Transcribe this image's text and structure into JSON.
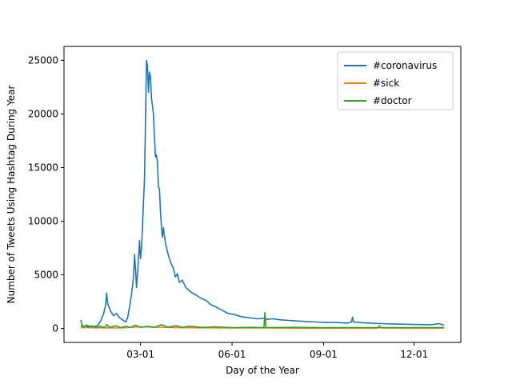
{
  "chart_data": {
    "type": "line",
    "xlabel": "Day of the Year",
    "ylabel": "Number of Tweets Using Hashtag During Year",
    "xlim": [
      "2020-01-01",
      "2020-12-31"
    ],
    "ylim": [
      -1300,
      26300
    ],
    "x_ticks": [
      {
        "date": "2020-03-01",
        "label": "03-01"
      },
      {
        "date": "2020-06-01",
        "label": "06-01"
      },
      {
        "date": "2020-09-01",
        "label": "09-01"
      },
      {
        "date": "2020-12-01",
        "label": "12-01"
      }
    ],
    "y_ticks": [
      0,
      5000,
      10000,
      15000,
      20000,
      25000
    ],
    "grid": false,
    "legend": "top-right",
    "series": [
      {
        "name": "#coronavirus",
        "color": "#1f77b4",
        "points": [
          [
            "2020-01-01",
            250
          ],
          [
            "2020-01-04",
            150
          ],
          [
            "2020-01-07",
            300
          ],
          [
            "2020-01-10",
            200
          ],
          [
            "2020-01-14",
            150
          ],
          [
            "2020-01-18",
            300
          ],
          [
            "2020-01-21",
            700
          ],
          [
            "2020-01-24",
            1400
          ],
          [
            "2020-01-26",
            2200
          ],
          [
            "2020-01-27",
            3300
          ],
          [
            "2020-01-28",
            2300
          ],
          [
            "2020-01-31",
            1600
          ],
          [
            "2020-02-03",
            1200
          ],
          [
            "2020-02-06",
            1400
          ],
          [
            "2020-02-09",
            1000
          ],
          [
            "2020-02-12",
            800
          ],
          [
            "2020-02-15",
            600
          ],
          [
            "2020-02-17",
            1000
          ],
          [
            "2020-02-19",
            2000
          ],
          [
            "2020-02-21",
            3200
          ],
          [
            "2020-02-23",
            4800
          ],
          [
            "2020-02-24",
            6900
          ],
          [
            "2020-02-25",
            5500
          ],
          [
            "2020-02-26",
            3800
          ],
          [
            "2020-02-28",
            6500
          ],
          [
            "2020-02-29",
            8200
          ],
          [
            "2020-03-01",
            6500
          ],
          [
            "2020-03-02",
            7500
          ],
          [
            "2020-03-03",
            9500
          ],
          [
            "2020-03-05",
            14000
          ],
          [
            "2020-03-06",
            19000
          ],
          [
            "2020-03-07",
            25000
          ],
          [
            "2020-03-08",
            24500
          ],
          [
            "2020-03-09",
            22000
          ],
          [
            "2020-03-10",
            23900
          ],
          [
            "2020-03-11",
            23500
          ],
          [
            "2020-03-12",
            21500
          ],
          [
            "2020-03-14",
            20000
          ],
          [
            "2020-03-15",
            18000
          ],
          [
            "2020-03-16",
            16000
          ],
          [
            "2020-03-17",
            16200
          ],
          [
            "2020-03-18",
            15500
          ],
          [
            "2020-03-19",
            13200
          ],
          [
            "2020-03-20",
            13000
          ],
          [
            "2020-03-21",
            11000
          ],
          [
            "2020-03-22",
            9500
          ],
          [
            "2020-03-23",
            8500
          ],
          [
            "2020-03-24",
            9400
          ],
          [
            "2020-03-26",
            8000
          ],
          [
            "2020-03-28",
            7200
          ],
          [
            "2020-03-30",
            6500
          ],
          [
            "2020-04-01",
            6000
          ],
          [
            "2020-04-03",
            5600
          ],
          [
            "2020-04-05",
            4800
          ],
          [
            "2020-04-07",
            5100
          ],
          [
            "2020-04-09",
            4300
          ],
          [
            "2020-04-12",
            4500
          ],
          [
            "2020-04-15",
            3900
          ],
          [
            "2020-04-18",
            3600
          ],
          [
            "2020-04-22",
            3300
          ],
          [
            "2020-04-26",
            3100
          ],
          [
            "2020-05-01",
            2800
          ],
          [
            "2020-05-06",
            2600
          ],
          [
            "2020-05-11",
            2200
          ],
          [
            "2020-05-16",
            2000
          ],
          [
            "2020-05-22",
            1700
          ],
          [
            "2020-05-28",
            1400
          ],
          [
            "2020-06-03",
            1300
          ],
          [
            "2020-06-10",
            1100
          ],
          [
            "2020-06-18",
            1000
          ],
          [
            "2020-06-26",
            900
          ],
          [
            "2020-07-03",
            950
          ],
          [
            "2020-07-06",
            850
          ],
          [
            "2020-07-12",
            900
          ],
          [
            "2020-07-20",
            800
          ],
          [
            "2020-07-28",
            750
          ],
          [
            "2020-08-05",
            700
          ],
          [
            "2020-08-15",
            650
          ],
          [
            "2020-08-25",
            600
          ],
          [
            "2020-09-05",
            550
          ],
          [
            "2020-09-15",
            550
          ],
          [
            "2020-09-25",
            500
          ],
          [
            "2020-09-29",
            600
          ],
          [
            "2020-09-30",
            1050
          ],
          [
            "2020-10-01",
            600
          ],
          [
            "2020-10-08",
            550
          ],
          [
            "2020-10-18",
            500
          ],
          [
            "2020-10-28",
            450
          ],
          [
            "2020-11-08",
            420
          ],
          [
            "2020-11-18",
            400
          ],
          [
            "2020-11-28",
            380
          ],
          [
            "2020-12-08",
            360
          ],
          [
            "2020-12-18",
            340
          ],
          [
            "2020-12-26",
            450
          ],
          [
            "2020-12-31",
            300
          ]
        ]
      },
      {
        "name": "#sick",
        "color": "#ff7f0e",
        "points": [
          [
            "2020-01-01",
            80
          ],
          [
            "2020-01-20",
            60
          ],
          [
            "2020-02-10",
            40
          ],
          [
            "2020-03-01",
            150
          ],
          [
            "2020-03-15",
            120
          ],
          [
            "2020-04-01",
            90
          ],
          [
            "2020-05-01",
            60
          ],
          [
            "2020-06-01",
            40
          ],
          [
            "2020-07-01",
            40
          ],
          [
            "2020-08-01",
            30
          ],
          [
            "2020-09-01",
            30
          ],
          [
            "2020-10-01",
            30
          ],
          [
            "2020-10-25",
            30
          ],
          [
            "2020-10-27",
            280
          ],
          [
            "2020-10-29",
            40
          ],
          [
            "2020-11-15",
            30
          ],
          [
            "2020-12-31",
            30
          ]
        ]
      },
      {
        "name": "#doctor",
        "color": "#2ca02c",
        "points": [
          [
            "2020-01-01",
            800
          ],
          [
            "2020-01-02",
            400
          ],
          [
            "2020-01-04",
            100
          ],
          [
            "2020-01-06",
            300
          ],
          [
            "2020-01-08",
            100
          ],
          [
            "2020-01-12",
            250
          ],
          [
            "2020-01-16",
            80
          ],
          [
            "2020-01-20",
            200
          ],
          [
            "2020-01-25",
            100
          ],
          [
            "2020-01-27",
            350
          ],
          [
            "2020-01-30",
            100
          ],
          [
            "2020-02-05",
            250
          ],
          [
            "2020-02-10",
            80
          ],
          [
            "2020-02-15",
            200
          ],
          [
            "2020-02-20",
            100
          ],
          [
            "2020-02-25",
            300
          ],
          [
            "2020-03-01",
            100
          ],
          [
            "2020-03-08",
            200
          ],
          [
            "2020-03-15",
            100
          ],
          [
            "2020-03-22",
            350
          ],
          [
            "2020-03-29",
            100
          ],
          [
            "2020-04-05",
            250
          ],
          [
            "2020-04-12",
            100
          ],
          [
            "2020-04-19",
            200
          ],
          [
            "2020-05-01",
            100
          ],
          [
            "2020-05-15",
            150
          ],
          [
            "2020-06-01",
            80
          ],
          [
            "2020-06-20",
            100
          ],
          [
            "2020-07-03",
            80
          ],
          [
            "2020-07-04",
            1500
          ],
          [
            "2020-07-05",
            80
          ],
          [
            "2020-08-01",
            100
          ],
          [
            "2020-09-01",
            80
          ],
          [
            "2020-10-01",
            80
          ],
          [
            "2020-11-01",
            80
          ],
          [
            "2020-12-01",
            80
          ],
          [
            "2020-12-31",
            80
          ]
        ]
      }
    ]
  }
}
